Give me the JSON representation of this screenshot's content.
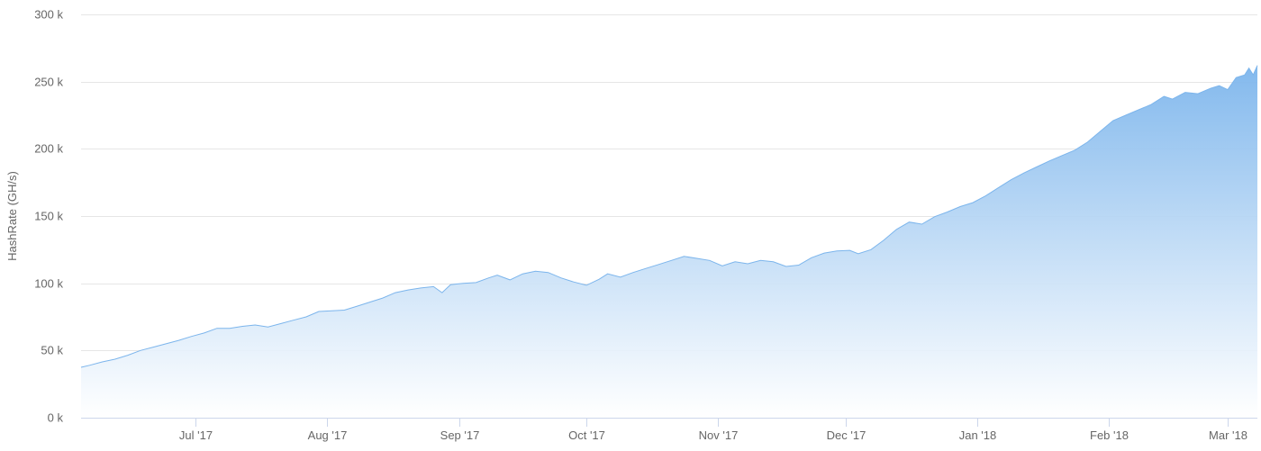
{
  "chart_data": {
    "type": "area",
    "title": "",
    "xlabel": "",
    "ylabel": "HashRate (GH/s)",
    "ylim": [
      0,
      300000
    ],
    "y_ticks": [
      {
        "value": 0,
        "label": "0 k"
      },
      {
        "value": 50000,
        "label": "50 k"
      },
      {
        "value": 100000,
        "label": "100 k"
      },
      {
        "value": 150000,
        "label": "150 k"
      },
      {
        "value": 200000,
        "label": "200 k"
      },
      {
        "value": 250000,
        "label": "250 k"
      },
      {
        "value": 300000,
        "label": "300 k"
      }
    ],
    "x_range": [
      "2017-06-04",
      "2018-03-08"
    ],
    "x_ticks": [
      {
        "date": "2017-07-01",
        "label": "Jul '17"
      },
      {
        "date": "2017-08-01",
        "label": "Aug '17"
      },
      {
        "date": "2017-09-01",
        "label": "Sep '17"
      },
      {
        "date": "2017-10-01",
        "label": "Oct '17"
      },
      {
        "date": "2017-11-01",
        "label": "Nov '17"
      },
      {
        "date": "2017-12-01",
        "label": "Dec '17"
      },
      {
        "date": "2018-01-01",
        "label": "Jan '18"
      },
      {
        "date": "2018-02-01",
        "label": "Feb '18"
      },
      {
        "date": "2018-03-01",
        "label": "Mar '18"
      }
    ],
    "grid": true,
    "legend": "none",
    "colors": {
      "line": "#7cb5ec",
      "fill_top": "#7cb5ec",
      "fill_bottom": "#ffffff",
      "grid": "#e6e6e6",
      "text": "#666666"
    },
    "series": [
      {
        "points": [
          [
            "2017-06-04",
            37500
          ],
          [
            "2017-06-06",
            39000
          ],
          [
            "2017-06-09",
            41500
          ],
          [
            "2017-06-12",
            43500
          ],
          [
            "2017-06-15",
            46500
          ],
          [
            "2017-06-18",
            50000
          ],
          [
            "2017-06-21",
            52500
          ],
          [
            "2017-06-24",
            55000
          ],
          [
            "2017-06-27",
            57500
          ],
          [
            "2017-06-30",
            60500
          ],
          [
            "2017-07-03",
            63000
          ],
          [
            "2017-07-06",
            66500
          ],
          [
            "2017-07-09",
            66500
          ],
          [
            "2017-07-12",
            68000
          ],
          [
            "2017-07-15",
            69000
          ],
          [
            "2017-07-18",
            67500
          ],
          [
            "2017-07-21",
            70000
          ],
          [
            "2017-07-24",
            72500
          ],
          [
            "2017-07-27",
            75000
          ],
          [
            "2017-07-30",
            79000
          ],
          [
            "2017-08-02",
            79500
          ],
          [
            "2017-08-05",
            80000
          ],
          [
            "2017-08-08",
            83000
          ],
          [
            "2017-08-11",
            86000
          ],
          [
            "2017-08-14",
            89000
          ],
          [
            "2017-08-17",
            93000
          ],
          [
            "2017-08-20",
            95000
          ],
          [
            "2017-08-23",
            96500
          ],
          [
            "2017-08-26",
            97500
          ],
          [
            "2017-08-28",
            93000
          ],
          [
            "2017-08-30",
            99000
          ],
          [
            "2017-09-02",
            100000
          ],
          [
            "2017-09-05",
            100500
          ],
          [
            "2017-09-08",
            104000
          ],
          [
            "2017-09-10",
            106000
          ],
          [
            "2017-09-13",
            102500
          ],
          [
            "2017-09-16",
            107000
          ],
          [
            "2017-09-19",
            109000
          ],
          [
            "2017-09-22",
            108000
          ],
          [
            "2017-09-25",
            104000
          ],
          [
            "2017-09-28",
            101000
          ],
          [
            "2017-10-01",
            98500
          ],
          [
            "2017-10-04",
            103000
          ],
          [
            "2017-10-06",
            107000
          ],
          [
            "2017-10-09",
            104500
          ],
          [
            "2017-10-12",
            108000
          ],
          [
            "2017-10-15",
            111000
          ],
          [
            "2017-10-18",
            114000
          ],
          [
            "2017-10-21",
            117000
          ],
          [
            "2017-10-24",
            120000
          ],
          [
            "2017-10-27",
            118500
          ],
          [
            "2017-10-30",
            117000
          ],
          [
            "2017-11-02",
            113000
          ],
          [
            "2017-11-05",
            116000
          ],
          [
            "2017-11-08",
            114500
          ],
          [
            "2017-11-11",
            117000
          ],
          [
            "2017-11-14",
            116000
          ],
          [
            "2017-11-17",
            112500
          ],
          [
            "2017-11-20",
            113500
          ],
          [
            "2017-11-23",
            119000
          ],
          [
            "2017-11-26",
            122500
          ],
          [
            "2017-11-29",
            124000
          ],
          [
            "2017-12-02",
            124500
          ],
          [
            "2017-12-04",
            122000
          ],
          [
            "2017-12-07",
            125000
          ],
          [
            "2017-12-10",
            132000
          ],
          [
            "2017-12-13",
            140000
          ],
          [
            "2017-12-16",
            145500
          ],
          [
            "2017-12-19",
            144000
          ],
          [
            "2017-12-22",
            149500
          ],
          [
            "2017-12-25",
            153000
          ],
          [
            "2017-12-28",
            157000
          ],
          [
            "2017-12-31",
            160000
          ],
          [
            "2018-01-03",
            165000
          ],
          [
            "2018-01-06",
            171000
          ],
          [
            "2018-01-09",
            177000
          ],
          [
            "2018-01-12",
            182000
          ],
          [
            "2018-01-15",
            186500
          ],
          [
            "2018-01-18",
            191000
          ],
          [
            "2018-01-21",
            195000
          ],
          [
            "2018-01-24",
            199000
          ],
          [
            "2018-01-27",
            205000
          ],
          [
            "2018-01-30",
            213000
          ],
          [
            "2018-02-02",
            221000
          ],
          [
            "2018-02-05",
            225000
          ],
          [
            "2018-02-08",
            229000
          ],
          [
            "2018-02-11",
            233000
          ],
          [
            "2018-02-14",
            239000
          ],
          [
            "2018-02-16",
            237000
          ],
          [
            "2018-02-19",
            242000
          ],
          [
            "2018-02-22",
            241000
          ],
          [
            "2018-02-25",
            245000
          ],
          [
            "2018-02-27",
            247000
          ],
          [
            "2018-03-01",
            244000
          ],
          [
            "2018-03-03",
            253000
          ],
          [
            "2018-03-05",
            255000
          ],
          [
            "2018-03-06",
            260000
          ],
          [
            "2018-03-07",
            255000
          ],
          [
            "2018-03-08",
            262000
          ]
        ]
      }
    ]
  }
}
